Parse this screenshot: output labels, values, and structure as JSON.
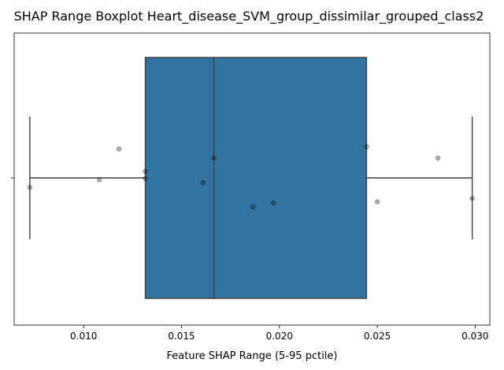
{
  "chart_data": {
    "type": "boxplot",
    "title": "SHAP Range Boxplot Heart_disease_SVM_group_dissimilar_grouped_class2",
    "xlabel": "Feature SHAP Range (5-95 pctile)",
    "ylabel": "",
    "xlim": [
      0.00645,
      0.03075
    ],
    "xticks": [
      0.01,
      0.015,
      0.02,
      0.025,
      0.03
    ],
    "xtick_labels": [
      "0.010",
      "0.015",
      "0.020",
      "0.025",
      "0.030"
    ],
    "grid": false,
    "legend": "none",
    "box": {
      "whisker_low": 0.00725,
      "q1": 0.01315,
      "median": 0.01665,
      "q3": 0.02445,
      "whisker_high": 0.02985,
      "color": "#3274a1",
      "edge_color": "#3f3f3f"
    },
    "points": [
      {
        "x": 0.00725,
        "y": 0.03
      },
      {
        "x": 0.0108,
        "y": 0.006
      },
      {
        "x": 0.0118,
        "y": -0.092
      },
      {
        "x": 0.01315,
        "y": -0.021
      },
      {
        "x": 0.01315,
        "y": 0.002
      },
      {
        "x": 0.0161,
        "y": 0.015
      },
      {
        "x": 0.01665,
        "y": -0.063
      },
      {
        "x": 0.01865,
        "y": 0.092
      },
      {
        "x": 0.0197,
        "y": 0.079
      },
      {
        "x": 0.02445,
        "y": -0.099
      },
      {
        "x": 0.025,
        "y": 0.076
      },
      {
        "x": 0.0281,
        "y": -0.063
      },
      {
        "x": 0.02985,
        "y": 0.065
      }
    ],
    "point_color": "#000000",
    "point_opacity": 0.33
  }
}
